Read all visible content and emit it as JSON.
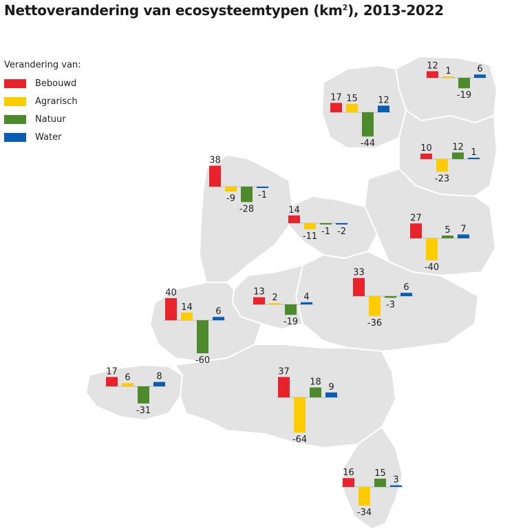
{
  "title_main": "Nettoverandering van ecosysteemtypen (km",
  "title_sup": "2",
  "title_tail": "), 2013-2022",
  "legend": {
    "title": "Verandering van:",
    "items": [
      {
        "label": "Bebouwd",
        "color": "#e8232b"
      },
      {
        "label": "Agrarisch",
        "color": "#ffcc00"
      },
      {
        "label": "Natuur",
        "color": "#4d8a2c"
      },
      {
        "label": "Water",
        "color": "#0a5db3"
      }
    ]
  },
  "chart_data": {
    "type": "bar",
    "title": "Nettoverandering van ecosysteemtypen (km²), 2013-2022",
    "categories": [
      "Bebouwd",
      "Agrarisch",
      "Natuur",
      "Water"
    ],
    "series": [
      {
        "values": [
          12,
          1,
          -19,
          6
        ]
      },
      {
        "values": [
          17,
          15,
          -44,
          12
        ]
      },
      {
        "values": [
          10,
          -23,
          12,
          1
        ]
      },
      {
        "values": [
          38,
          -9,
          -28,
          -1
        ]
      },
      {
        "values": [
          14,
          -11,
          -1,
          -2
        ]
      },
      {
        "values": [
          27,
          -40,
          5,
          7
        ]
      },
      {
        "values": [
          40,
          14,
          -60,
          6
        ]
      },
      {
        "values": [
          13,
          2,
          -19,
          4
        ]
      },
      {
        "values": [
          33,
          -36,
          -3,
          6
        ]
      },
      {
        "values": [
          17,
          6,
          -31,
          8
        ]
      },
      {
        "values": [
          37,
          -64,
          18,
          9
        ]
      },
      {
        "values": [
          16,
          -34,
          15,
          3
        ]
      }
    ]
  }
}
